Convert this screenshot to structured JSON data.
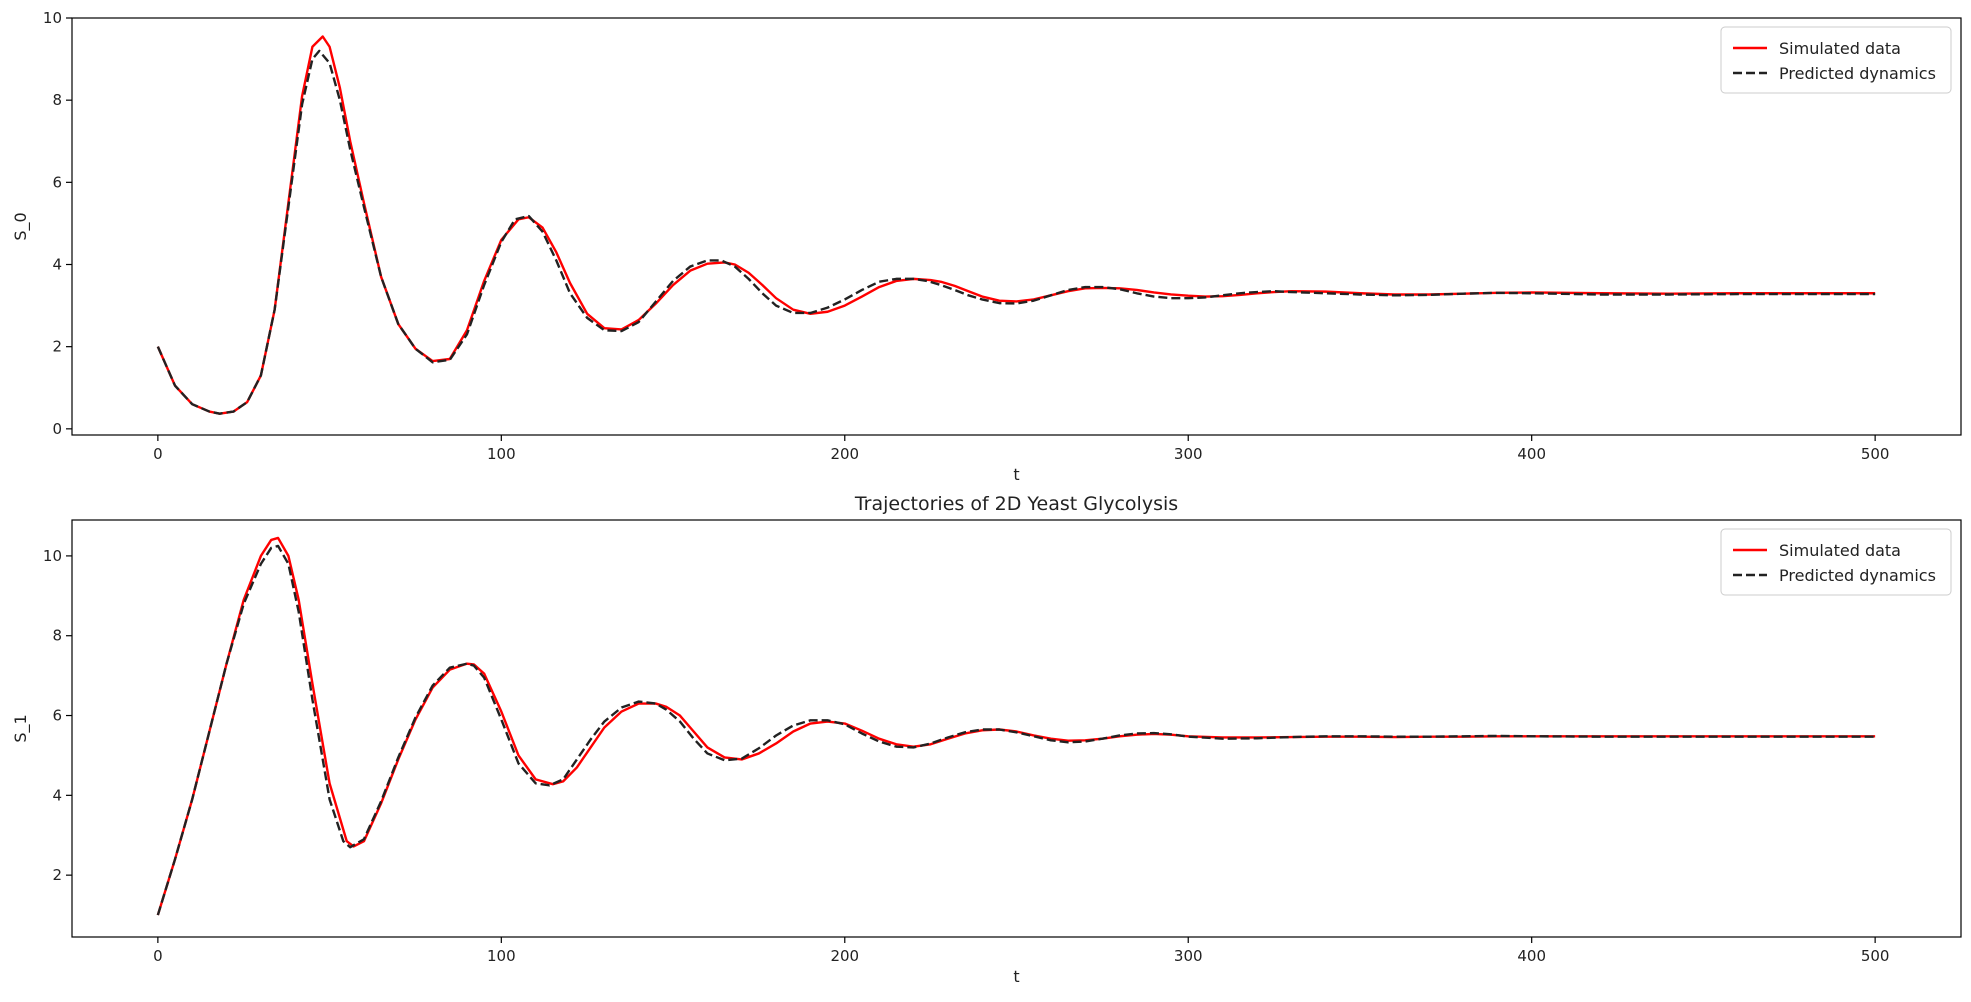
{
  "chart_data": [
    {
      "type": "line",
      "title": "",
      "xlabel": "t",
      "ylabel": "S_0",
      "xlim": [
        -25,
        525
      ],
      "ylim": [
        -0.15,
        10
      ],
      "xticks": [
        0,
        100,
        200,
        300,
        400,
        500
      ],
      "yticks": [
        0,
        2,
        4,
        6,
        8,
        10
      ],
      "legend": "top-right",
      "grid": false,
      "series": [
        {
          "name": "Simulated data",
          "color": "#ff0000",
          "style": "solid",
          "x": [
            0,
            5,
            10,
            15,
            18,
            22,
            26,
            30,
            34,
            38,
            42,
            45,
            48,
            50,
            53,
            56,
            60,
            65,
            70,
            75,
            80,
            85,
            90,
            95,
            100,
            105,
            108,
            112,
            116,
            120,
            125,
            130,
            135,
            140,
            145,
            150,
            155,
            160,
            165,
            168,
            172,
            176,
            180,
            185,
            190,
            195,
            200,
            205,
            210,
            215,
            220,
            225,
            228,
            232,
            236,
            240,
            245,
            250,
            255,
            260,
            265,
            270,
            275,
            280,
            285,
            290,
            295,
            300,
            305,
            310,
            315,
            320,
            325,
            330,
            340,
            350,
            360,
            370,
            380,
            390,
            400,
            420,
            440,
            460,
            480,
            500
          ],
          "y": [
            2.0,
            1.05,
            0.6,
            0.42,
            0.37,
            0.42,
            0.65,
            1.3,
            2.9,
            5.5,
            8.1,
            9.3,
            9.55,
            9.3,
            8.3,
            7.0,
            5.5,
            3.7,
            2.55,
            1.95,
            1.65,
            1.7,
            2.4,
            3.6,
            4.6,
            5.1,
            5.15,
            4.9,
            4.3,
            3.55,
            2.8,
            2.45,
            2.42,
            2.65,
            3.05,
            3.5,
            3.85,
            4.02,
            4.05,
            4.0,
            3.8,
            3.5,
            3.18,
            2.9,
            2.8,
            2.85,
            3.0,
            3.22,
            3.45,
            3.6,
            3.65,
            3.62,
            3.58,
            3.48,
            3.35,
            3.22,
            3.12,
            3.1,
            3.15,
            3.25,
            3.35,
            3.42,
            3.43,
            3.42,
            3.38,
            3.32,
            3.27,
            3.24,
            3.22,
            3.23,
            3.26,
            3.3,
            3.33,
            3.35,
            3.34,
            3.3,
            3.27,
            3.27,
            3.29,
            3.31,
            3.32,
            3.3,
            3.29,
            3.3,
            3.3,
            3.3
          ]
        },
        {
          "name": "Predicted dynamics",
          "color": "#222222",
          "style": "dashed",
          "x": [
            0,
            5,
            10,
            15,
            18,
            22,
            26,
            30,
            34,
            38,
            42,
            45,
            47,
            50,
            53,
            56,
            60,
            65,
            70,
            75,
            80,
            85,
            90,
            95,
            100,
            104,
            108,
            112,
            116,
            120,
            125,
            130,
            135,
            140,
            145,
            150,
            155,
            160,
            164,
            168,
            172,
            176,
            180,
            185,
            190,
            195,
            200,
            205,
            210,
            215,
            220,
            224,
            228,
            232,
            236,
            240,
            245,
            250,
            255,
            260,
            265,
            270,
            275,
            280,
            285,
            290,
            295,
            300,
            305,
            310,
            315,
            320,
            325,
            330,
            340,
            350,
            360,
            370,
            380,
            390,
            400,
            420,
            440,
            460,
            480,
            500
          ],
          "y": [
            2.0,
            1.05,
            0.6,
            0.42,
            0.37,
            0.42,
            0.65,
            1.3,
            2.9,
            5.4,
            7.9,
            9.0,
            9.2,
            8.9,
            8.0,
            6.8,
            5.4,
            3.7,
            2.55,
            1.95,
            1.62,
            1.68,
            2.3,
            3.5,
            4.55,
            5.1,
            5.18,
            4.8,
            4.1,
            3.3,
            2.7,
            2.4,
            2.38,
            2.6,
            3.1,
            3.6,
            3.95,
            4.1,
            4.1,
            3.95,
            3.65,
            3.3,
            3.0,
            2.82,
            2.82,
            2.95,
            3.15,
            3.38,
            3.58,
            3.65,
            3.65,
            3.6,
            3.5,
            3.38,
            3.25,
            3.15,
            3.06,
            3.05,
            3.12,
            3.25,
            3.38,
            3.45,
            3.45,
            3.4,
            3.3,
            3.22,
            3.18,
            3.18,
            3.2,
            3.25,
            3.3,
            3.33,
            3.35,
            3.33,
            3.3,
            3.27,
            3.25,
            3.26,
            3.29,
            3.31,
            3.3,
            3.27,
            3.27,
            3.28,
            3.28,
            3.28
          ]
        }
      ]
    },
    {
      "type": "line",
      "title": "Trajectories of 2D Yeast Glycolysis",
      "xlabel": "t",
      "ylabel": "S_1",
      "xlim": [
        -25,
        525
      ],
      "ylim": [
        0.45,
        10.9
      ],
      "xticks": [
        0,
        100,
        200,
        300,
        400,
        500
      ],
      "yticks": [
        2,
        4,
        6,
        8,
        10
      ],
      "legend": "top-right",
      "grid": false,
      "series": [
        {
          "name": "Simulated data",
          "color": "#ff0000",
          "style": "solid",
          "x": [
            0,
            5,
            10,
            15,
            20,
            25,
            30,
            33,
            35,
            38,
            41,
            45,
            50,
            55,
            57,
            60,
            65,
            70,
            75,
            80,
            85,
            90,
            92,
            95,
            100,
            105,
            110,
            115,
            118,
            122,
            126,
            130,
            135,
            140,
            145,
            148,
            152,
            156,
            160,
            165,
            170,
            175,
            180,
            185,
            190,
            195,
            200,
            205,
            210,
            215,
            220,
            225,
            230,
            235,
            240,
            245,
            250,
            255,
            260,
            265,
            270,
            275,
            280,
            285,
            290,
            295,
            300,
            310,
            320,
            330,
            340,
            350,
            360,
            370,
            380,
            390,
            400,
            420,
            440,
            460,
            480,
            500
          ],
          "y": [
            1.0,
            2.4,
            3.9,
            5.6,
            7.3,
            8.9,
            10.0,
            10.4,
            10.45,
            10.0,
            8.9,
            6.8,
            4.3,
            2.85,
            2.72,
            2.85,
            3.8,
            4.9,
            5.9,
            6.7,
            7.15,
            7.3,
            7.28,
            7.05,
            6.1,
            5.0,
            4.4,
            4.28,
            4.35,
            4.7,
            5.2,
            5.7,
            6.1,
            6.3,
            6.3,
            6.22,
            6.0,
            5.6,
            5.2,
            4.95,
            4.9,
            5.05,
            5.3,
            5.6,
            5.8,
            5.85,
            5.8,
            5.62,
            5.42,
            5.28,
            5.22,
            5.28,
            5.42,
            5.55,
            5.63,
            5.65,
            5.6,
            5.5,
            5.42,
            5.37,
            5.38,
            5.42,
            5.48,
            5.52,
            5.54,
            5.52,
            5.48,
            5.45,
            5.45,
            5.46,
            5.47,
            5.47,
            5.46,
            5.47,
            5.47,
            5.48,
            5.48,
            5.48,
            5.48,
            5.48,
            5.48,
            5.48
          ]
        },
        {
          "name": "Predicted dynamics",
          "color": "#222222",
          "style": "dashed",
          "x": [
            0,
            5,
            10,
            15,
            20,
            25,
            30,
            33,
            35,
            38,
            41,
            45,
            50,
            54,
            56,
            60,
            65,
            70,
            75,
            80,
            85,
            90,
            92,
            95,
            100,
            105,
            110,
            114,
            118,
            122,
            126,
            130,
            135,
            140,
            145,
            148,
            152,
            156,
            160,
            165,
            170,
            175,
            180,
            185,
            190,
            195,
            200,
            205,
            210,
            215,
            220,
            225,
            230,
            235,
            240,
            245,
            250,
            255,
            260,
            265,
            270,
            275,
            280,
            285,
            290,
            295,
            300,
            310,
            320,
            330,
            340,
            350,
            360,
            370,
            380,
            390,
            400,
            420,
            440,
            460,
            480,
            500
          ],
          "y": [
            1.0,
            2.4,
            3.9,
            5.6,
            7.3,
            8.8,
            9.8,
            10.2,
            10.25,
            9.8,
            8.6,
            6.4,
            3.9,
            2.85,
            2.7,
            2.9,
            3.85,
            4.95,
            5.95,
            6.75,
            7.2,
            7.3,
            7.25,
            6.95,
            5.9,
            4.8,
            4.3,
            4.25,
            4.4,
            4.9,
            5.4,
            5.85,
            6.2,
            6.35,
            6.3,
            6.15,
            5.85,
            5.42,
            5.05,
            4.88,
            4.92,
            5.18,
            5.5,
            5.75,
            5.88,
            5.88,
            5.78,
            5.55,
            5.35,
            5.22,
            5.2,
            5.3,
            5.45,
            5.58,
            5.65,
            5.65,
            5.58,
            5.48,
            5.38,
            5.33,
            5.35,
            5.42,
            5.5,
            5.55,
            5.56,
            5.53,
            5.47,
            5.42,
            5.43,
            5.46,
            5.48,
            5.48,
            5.47,
            5.47,
            5.48,
            5.49,
            5.48,
            5.47,
            5.47,
            5.47,
            5.47,
            5.47
          ]
        }
      ]
    }
  ]
}
